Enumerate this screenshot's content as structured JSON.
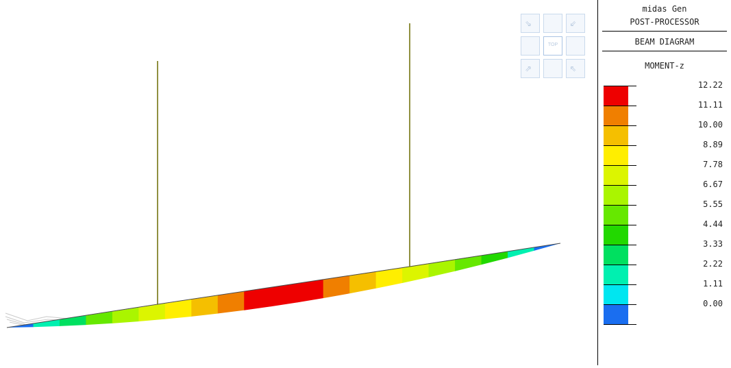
{
  "panel": {
    "app_name": "midas Gen",
    "module": "POST-PROCESSOR",
    "diagram_type": "BEAM DIAGRAM",
    "result_type": "MOMENT-z"
  },
  "legend": {
    "levels": [
      {
        "value": "12.22",
        "color": "#ee0000"
      },
      {
        "value": "11.11",
        "color": "#f07f00"
      },
      {
        "value": "10.00",
        "color": "#f5bf00"
      },
      {
        "value": "8.89",
        "color": "#ffee00"
      },
      {
        "value": "7.78",
        "color": "#dcf500"
      },
      {
        "value": "6.67",
        "color": "#aaf500"
      },
      {
        "value": "5.55",
        "color": "#66e800"
      },
      {
        "value": "4.44",
        "color": "#22d800"
      },
      {
        "value": "3.33",
        "color": "#00e060"
      },
      {
        "value": "2.22",
        "color": "#00f0b0"
      },
      {
        "value": "1.11",
        "color": "#00e6f0"
      },
      {
        "value": "0.00",
        "color": "#1a6ef0"
      }
    ]
  },
  "view_cube": {
    "face_label": "TOP",
    "icons": [
      "arrow-down-right-icon",
      "arrow-down-left-icon",
      "arrow-up-right-icon",
      "arrow-up-left-icon"
    ]
  },
  "model": {
    "beam_band_colors": [
      "#1a6ef0",
      "#00f0b0",
      "#00e060",
      "#66e800",
      "#aaf500",
      "#dcf500",
      "#ffee00",
      "#f5bf00",
      "#f07f00",
      "#ee0000",
      "#ee0000",
      "#ee0000",
      "#f07f00",
      "#f5bf00",
      "#ffee00",
      "#dcf500",
      "#aaf500",
      "#66e800",
      "#22d800",
      "#00f0b0",
      "#1a6ef0"
    ],
    "column_color": "#6b6b00"
  }
}
